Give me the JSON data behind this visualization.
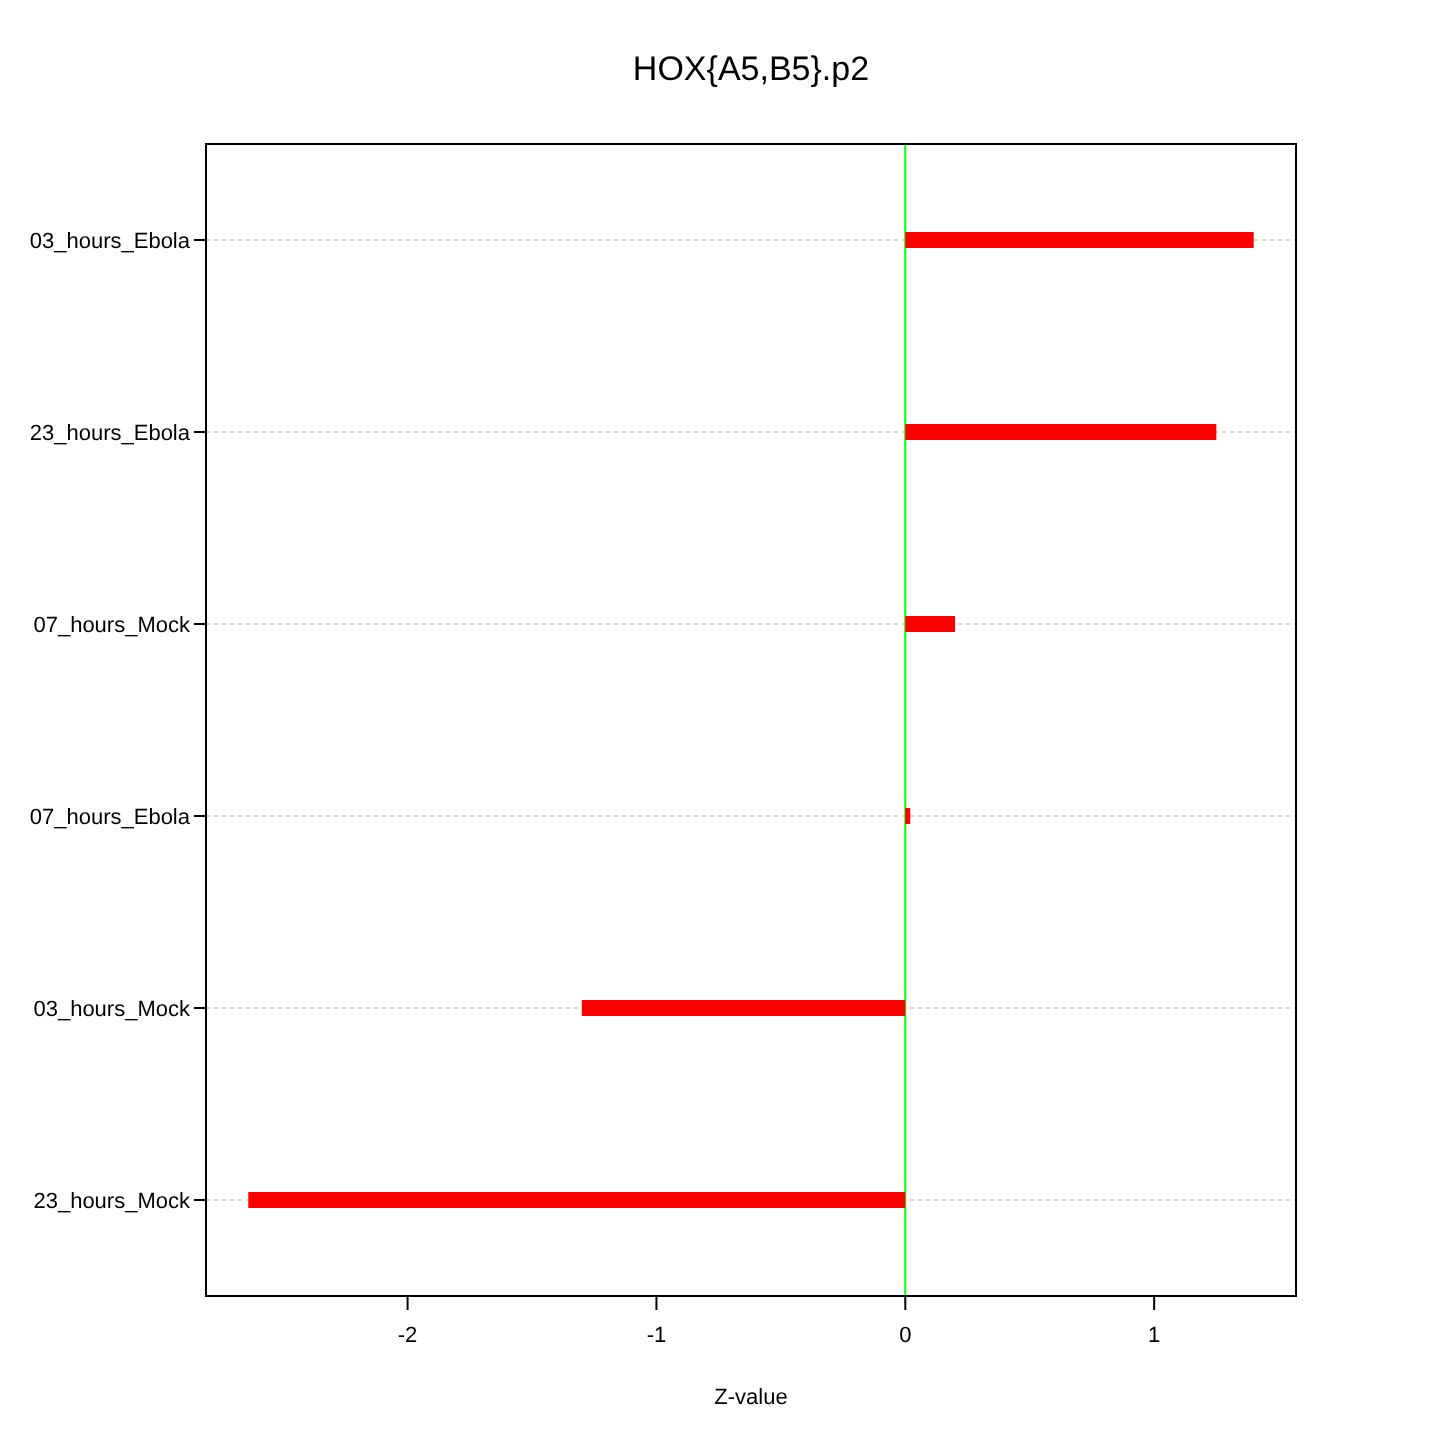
{
  "chart_data": {
    "type": "bar",
    "orientation": "horizontal",
    "title": "HOX{A5,B5}.p2",
    "xlabel": "Z-value",
    "categories": [
      "03_hours_Ebola",
      "23_hours_Ebola",
      "07_hours_Mock",
      "07_hours_Ebola",
      "03_hours_Mock",
      "23_hours_Mock"
    ],
    "values": [
      1.4,
      1.25,
      0.2,
      0.02,
      -1.3,
      -2.64
    ],
    "color": "#ff0000",
    "xlim": [
      -2.81,
      1.57
    ],
    "xticks": [
      -2,
      -1,
      0,
      1
    ],
    "grid": "y",
    "ref_lines": [
      {
        "axis": "x",
        "value": 0,
        "color": "#00ff00"
      }
    ]
  }
}
